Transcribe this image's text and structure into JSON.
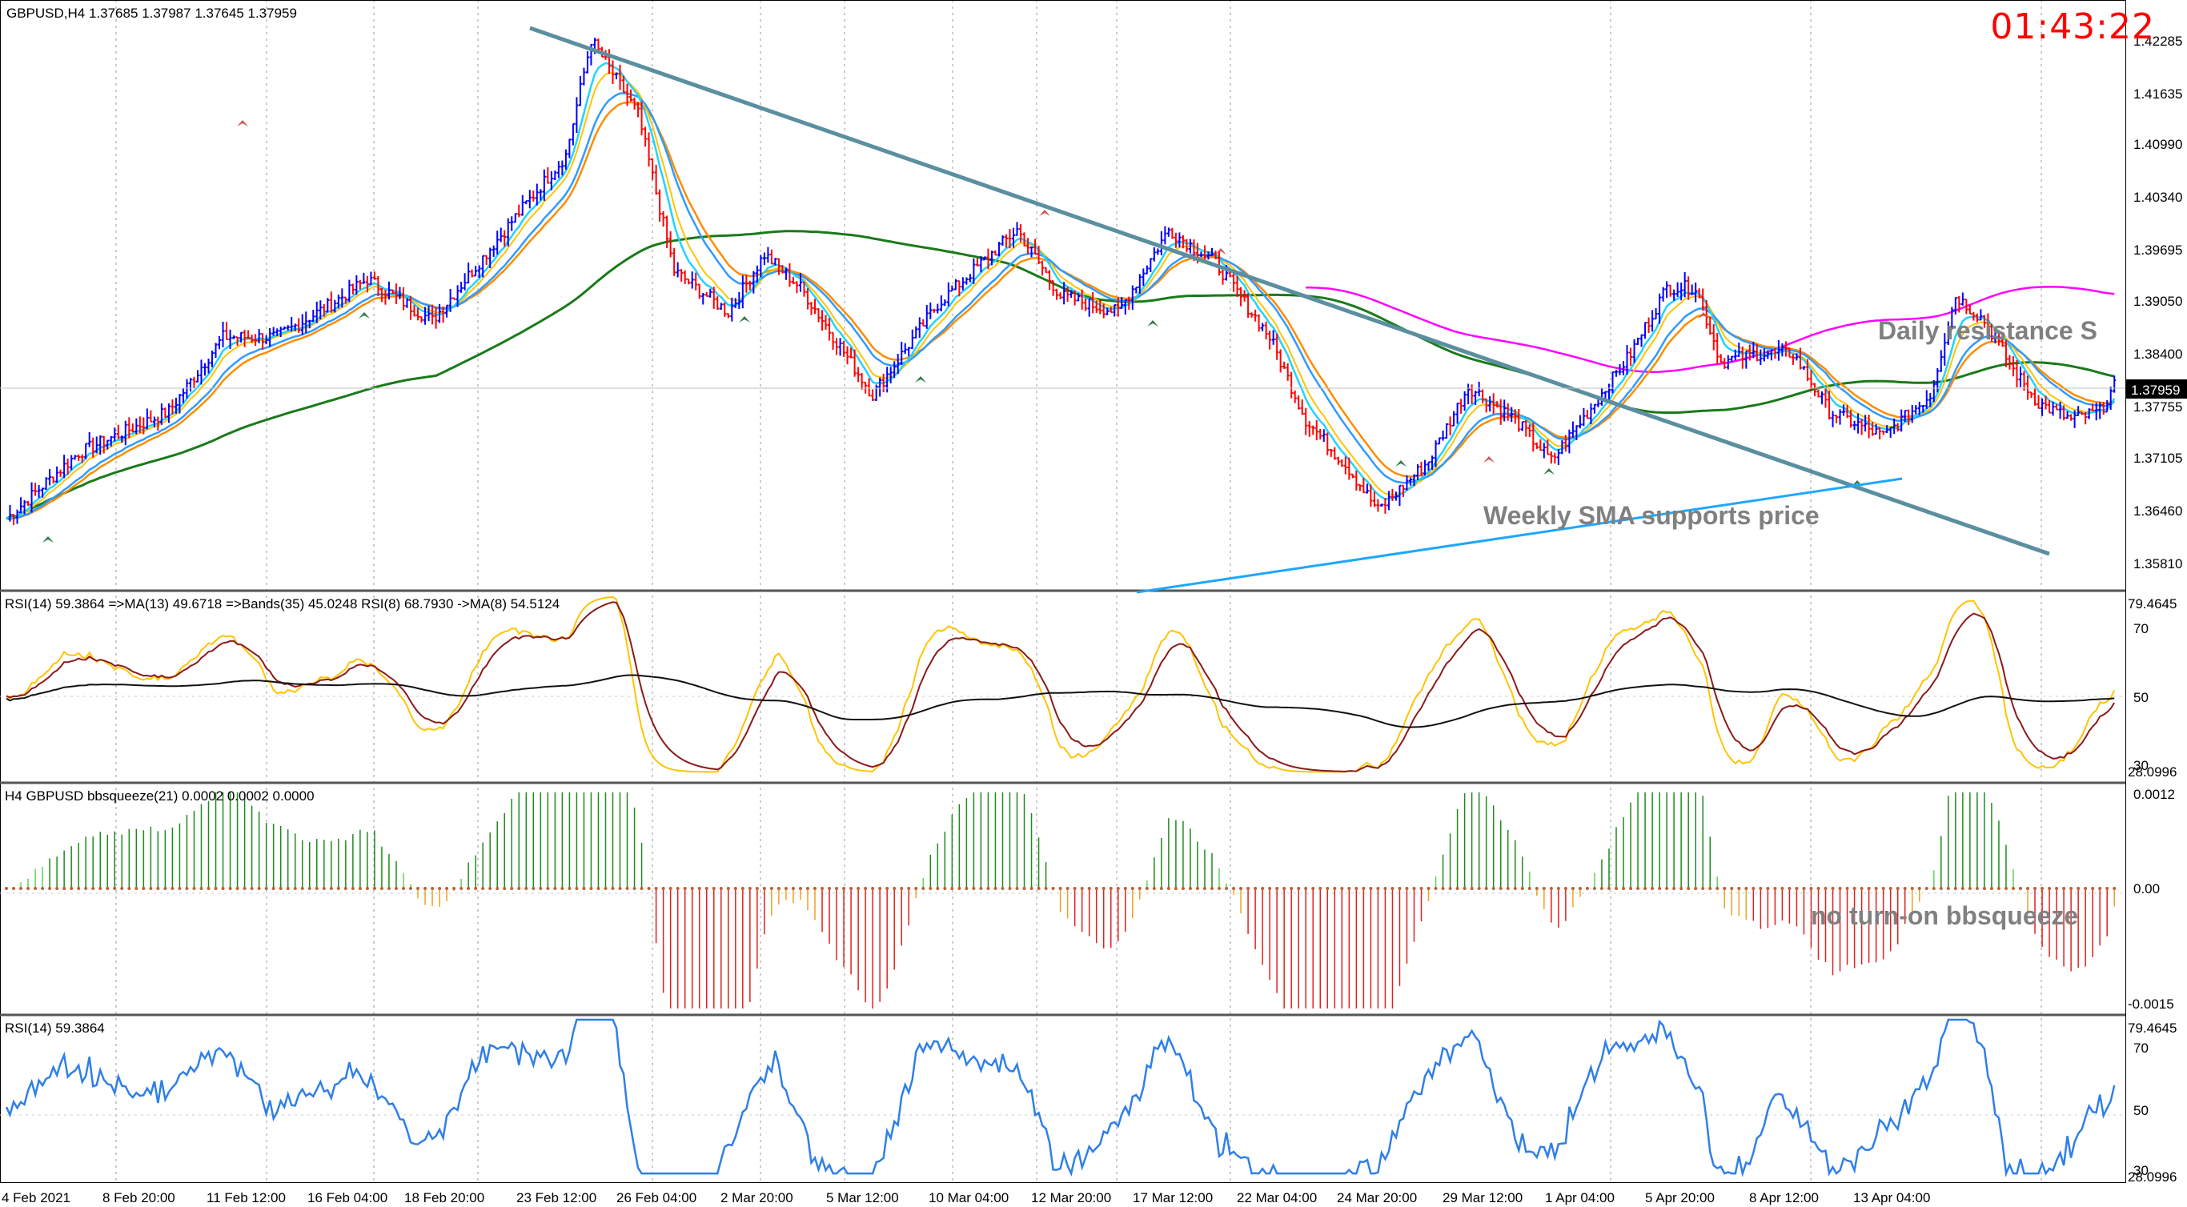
{
  "main_panel": {
    "header": "GBPUSD,H4  1.37685 1.37987 1.37645 1.37959",
    "price_ticks": [
      "1.42285",
      "1.41635",
      "1.40990",
      "1.40340",
      "1.39695",
      "1.39050",
      "1.38400",
      "1.37755",
      "1.37105",
      "1.36460",
      "1.35810"
    ],
    "current_price": "1.37959",
    "clock": "01:43:22",
    "annotations": {
      "resistance": "Daily resistance S",
      "support": "Weekly SMA supports price"
    }
  },
  "rsi_bands_panel": {
    "header": "RSI(14) 59.3864  =>MA(13) 49.6718  =>Bands(35) 45.0248  RSI(8) 68.7930  ->MA(8) 54.5124",
    "ticks": [
      "79.4645",
      "70",
      "50",
      "30",
      "28.0996"
    ]
  },
  "bbsqueeze_panel": {
    "header": "H4 GBPUSD bbsqueeze(21) 0.0002 0.0002 0.0000",
    "ticks": [
      "0.0012",
      "0.00",
      "-0.0015"
    ],
    "annotation": "no turn-on bbsqueeze"
  },
  "rsi_panel": {
    "header": "RSI(14) 59.3864",
    "ticks": [
      "79.4645",
      "70",
      "50",
      "30",
      "28.0996"
    ]
  },
  "time_axis": [
    "4 Feb 2021",
    "8 Feb 20:00",
    "11 Feb 12:00",
    "16 Feb 04:00",
    "18 Feb 20:00",
    "23 Feb 12:00",
    "26 Feb 04:00",
    "2 Mar 20:00",
    "5 Mar 12:00",
    "10 Mar 04:00",
    "12 Mar 20:00",
    "17 Mar 12:00",
    "22 Mar 04:00",
    "24 Mar 20:00",
    "29 Mar 12:00",
    "1 Apr 04:00",
    "5 Apr 20:00",
    "8 Apr 12:00",
    "13 Apr 04:00"
  ],
  "colors": {
    "bull_bar": "#0000ff",
    "bear_bar": "#ff0000",
    "trendline": "#5b8fa0",
    "sma_weekly": "#1ea7ff",
    "ma_magenta": "#ff00ff",
    "ma_green": "#1a7a1a",
    "ma_orange": "#ff8c00",
    "ma_yellow": "#ffc400",
    "ma_blue": "#2f9bff",
    "ma_cyan": "#22d3ff",
    "rsi_blue": "#2f7fe8",
    "squeeze_green": "#5fd35f",
    "squeeze_red": "#e02020",
    "squeeze_orange": "#f0a020"
  },
  "chart_data": {
    "type": "candlestick",
    "symbol": "GBPUSD",
    "timeframe": "H4",
    "ohlc_last": {
      "open": 1.37685,
      "high": 1.37987,
      "low": 1.37645,
      "close": 1.37959
    },
    "ylim": [
      1.3553,
      1.4268
    ],
    "close_path": [
      [
        0,
        1.364
      ],
      [
        20,
        1.372
      ],
      [
        45,
        1.377
      ],
      [
        60,
        1.386
      ],
      [
        75,
        1.386
      ],
      [
        90,
        1.39
      ],
      [
        100,
        1.393
      ],
      [
        118,
        1.388
      ],
      [
        140,
        1.4
      ],
      [
        155,
        1.408
      ],
      [
        162,
        1.422
      ],
      [
        175,
        1.413
      ],
      [
        185,
        1.394
      ],
      [
        200,
        1.389
      ],
      [
        210,
        1.396
      ],
      [
        220,
        1.392
      ],
      [
        240,
        1.379
      ],
      [
        258,
        1.39
      ],
      [
        280,
        1.399
      ],
      [
        292,
        1.391
      ],
      [
        308,
        1.389
      ],
      [
        322,
        1.399
      ],
      [
        335,
        1.395
      ],
      [
        350,
        1.386
      ],
      [
        360,
        1.376
      ],
      [
        372,
        1.37
      ],
      [
        380,
        1.365
      ],
      [
        394,
        1.371
      ],
      [
        405,
        1.38
      ],
      [
        418,
        1.376
      ],
      [
        428,
        1.371
      ],
      [
        440,
        1.378
      ],
      [
        450,
        1.384
      ],
      [
        460,
        1.392
      ],
      [
        468,
        1.392
      ],
      [
        475,
        1.383
      ],
      [
        485,
        1.384
      ],
      [
        495,
        1.384
      ],
      [
        505,
        1.377
      ],
      [
        520,
        1.374
      ],
      [
        533,
        1.379
      ],
      [
        540,
        1.391
      ],
      [
        548,
        1.388
      ],
      [
        556,
        1.382
      ],
      [
        563,
        1.378
      ],
      [
        572,
        1.376
      ],
      [
        580,
        1.377
      ],
      [
        584,
        1.38
      ]
    ],
    "indicators": [
      "SMA weekly",
      "MA fast cyan",
      "MA blue",
      "MA orange",
      "MA yellow",
      "MA green",
      "MA magenta",
      "Trendline"
    ]
  }
}
